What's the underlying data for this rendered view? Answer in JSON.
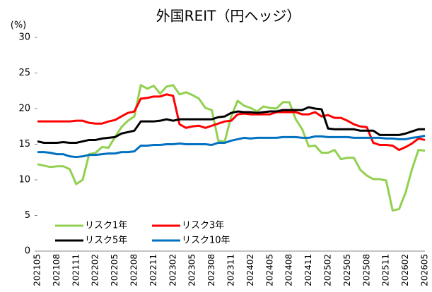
{
  "chart_data": {
    "type": "line",
    "title": "外国REIT（円ヘッジ）",
    "y_label": "(%)",
    "categories": [
      "202105",
      null,
      null,
      "202108",
      null,
      null,
      "202111",
      null,
      null,
      "202202",
      null,
      null,
      "202205",
      null,
      null,
      "202208",
      null,
      null,
      "202211",
      null,
      null,
      "202302",
      null,
      null,
      "202305",
      null,
      null,
      "202308",
      null,
      null,
      "202311",
      null,
      null,
      "202402",
      null,
      null,
      "202405",
      null,
      null,
      "202408",
      null,
      null,
      "202411",
      null,
      null,
      "202502",
      null,
      null,
      "202505",
      null,
      null,
      "202508",
      null,
      null,
      "202511",
      null,
      null,
      "202602",
      null,
      null,
      "202605"
    ],
    "series": [
      {
        "name": "リスク1年",
        "color": "#92d050",
        "values": [
          12.2,
          12.0,
          11.8,
          11.9,
          11.9,
          11.5,
          9.4,
          10.0,
          13.6,
          13.8,
          14.6,
          14.5,
          16.0,
          17.4,
          18.3,
          18.9,
          23.3,
          22.8,
          23.2,
          22.1,
          23.1,
          23.3,
          22.0,
          22.3,
          21.9,
          21.4,
          20.1,
          19.8,
          15.5,
          15.4,
          18.9,
          21.1,
          20.4,
          20.1,
          19.6,
          20.3,
          20.1,
          20.0,
          20.9,
          20.9,
          18.5,
          17.1,
          14.7,
          14.8,
          13.8,
          13.8,
          14.2,
          12.9,
          13.1,
          13.1,
          11.4,
          10.6,
          10.1,
          10.1,
          9.9,
          5.7,
          5.9,
          8.2,
          11.5,
          14.2,
          14.1
        ]
      },
      {
        "name": "リスク3年",
        "color": "#ff0000",
        "values": [
          18.2,
          18.2,
          18.2,
          18.2,
          18.2,
          18.2,
          18.3,
          18.3,
          18.0,
          17.9,
          17.9,
          18.2,
          18.4,
          18.9,
          19.4,
          19.6,
          21.4,
          21.5,
          21.7,
          21.7,
          22.0,
          21.8,
          17.8,
          17.3,
          17.5,
          17.6,
          17.3,
          17.6,
          17.9,
          18.2,
          18.3,
          19.2,
          19.3,
          19.2,
          19.2,
          19.2,
          19.2,
          19.5,
          19.5,
          19.5,
          19.5,
          19.2,
          19.2,
          19.5,
          18.9,
          19.1,
          18.7,
          18.7,
          18.3,
          17.8,
          17.5,
          17.4,
          15.2,
          14.9,
          14.9,
          14.8,
          14.2,
          14.6,
          15.1,
          15.8,
          15.6
        ]
      },
      {
        "name": "リスク5年",
        "color": "#000000",
        "values": [
          15.4,
          15.2,
          15.2,
          15.2,
          15.3,
          15.2,
          15.2,
          15.4,
          15.6,
          15.6,
          15.8,
          15.9,
          16.0,
          16.5,
          16.7,
          16.9,
          18.2,
          18.2,
          18.2,
          18.3,
          18.5,
          18.3,
          18.5,
          18.5,
          18.5,
          18.5,
          18.5,
          18.5,
          18.8,
          18.9,
          19.4,
          19.6,
          19.5,
          19.5,
          19.4,
          19.5,
          19.6,
          19.6,
          19.8,
          19.8,
          19.8,
          19.8,
          20.2,
          20.0,
          19.9,
          17.2,
          17.1,
          17.1,
          17.1,
          17.1,
          16.9,
          16.9,
          16.9,
          16.3,
          16.3,
          16.3,
          16.3,
          16.5,
          16.8,
          17.1,
          17.1
        ]
      },
      {
        "name": "リスク10年",
        "color": "#0070c0",
        "values": [
          13.9,
          13.9,
          13.8,
          13.6,
          13.6,
          13.3,
          13.2,
          13.3,
          13.5,
          13.5,
          13.6,
          13.7,
          13.7,
          13.9,
          13.9,
          14.0,
          14.8,
          14.8,
          14.9,
          14.9,
          15.0,
          15.0,
          15.1,
          15.0,
          15.0,
          15.0,
          15.0,
          14.9,
          15.2,
          15.2,
          15.5,
          15.7,
          15.9,
          15.8,
          15.9,
          15.9,
          15.9,
          15.9,
          16.0,
          16.0,
          16.0,
          15.9,
          15.9,
          16.1,
          16.1,
          16.0,
          16.0,
          16.0,
          16.0,
          15.9,
          15.9,
          15.9,
          15.9,
          15.9,
          15.8,
          15.8,
          15.7,
          15.7,
          15.9,
          16.0,
          16.2
        ]
      }
    ],
    "ylim": [
      0,
      30
    ],
    "yticks": [
      0,
      5,
      10,
      15,
      20,
      25,
      30
    ],
    "grid": false,
    "legend": "lower left"
  }
}
